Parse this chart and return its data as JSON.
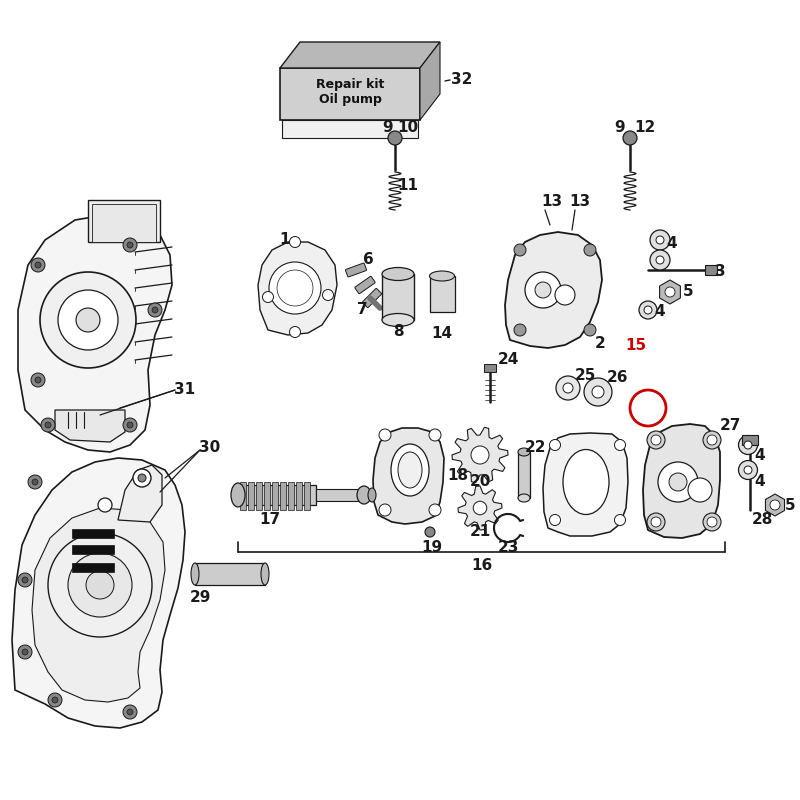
{
  "background_color": "#ffffff",
  "figure_size": [
    8.0,
    8.0
  ],
  "dpi": 100,
  "lc": "#1a1a1a",
  "red": "#cc0000",
  "fs_num": 11,
  "fs_label": 8.5,
  "repair_kit": {
    "bx": 0.345,
    "by": 0.855,
    "bw": 0.16,
    "bh": 0.058,
    "ox": 0.022,
    "oy": 0.028,
    "label": "Repair kit\nOil pump",
    "num": "32",
    "nx": 0.545,
    "ny": 0.878
  }
}
